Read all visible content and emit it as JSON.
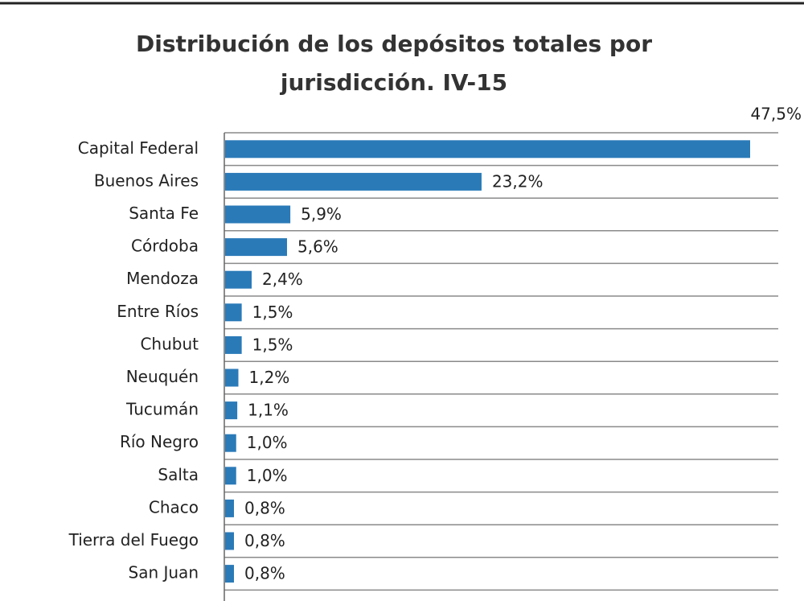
{
  "chart_data": {
    "type": "bar",
    "orientation": "horizontal",
    "title": "Distribución de los depósitos totales por",
    "subtitle": "jurisdicción. IV-15",
    "categories": [
      "Capital Federal",
      "Buenos Aires",
      "Santa Fe",
      "Córdoba",
      "Mendoza",
      "Entre Ríos",
      "Chubut",
      "Neuquén",
      "Tucumán",
      "Río Negro",
      "Salta",
      "Chaco",
      "Tierra del Fuego",
      "San Juan"
    ],
    "values": [
      47.5,
      23.2,
      5.9,
      5.6,
      2.4,
      1.5,
      1.5,
      1.2,
      1.1,
      1.0,
      1.0,
      0.8,
      0.8,
      0.8
    ],
    "value_labels": [
      "47,5%",
      "23,2%",
      "5,9%",
      "5,6%",
      "2,4%",
      "1,5%",
      "1,5%",
      "1,2%",
      "1,1%",
      "1,0%",
      "1,0%",
      "0,8%",
      "0,8%",
      "0,8%"
    ],
    "color": "#2a7ab8",
    "grid": true
  }
}
